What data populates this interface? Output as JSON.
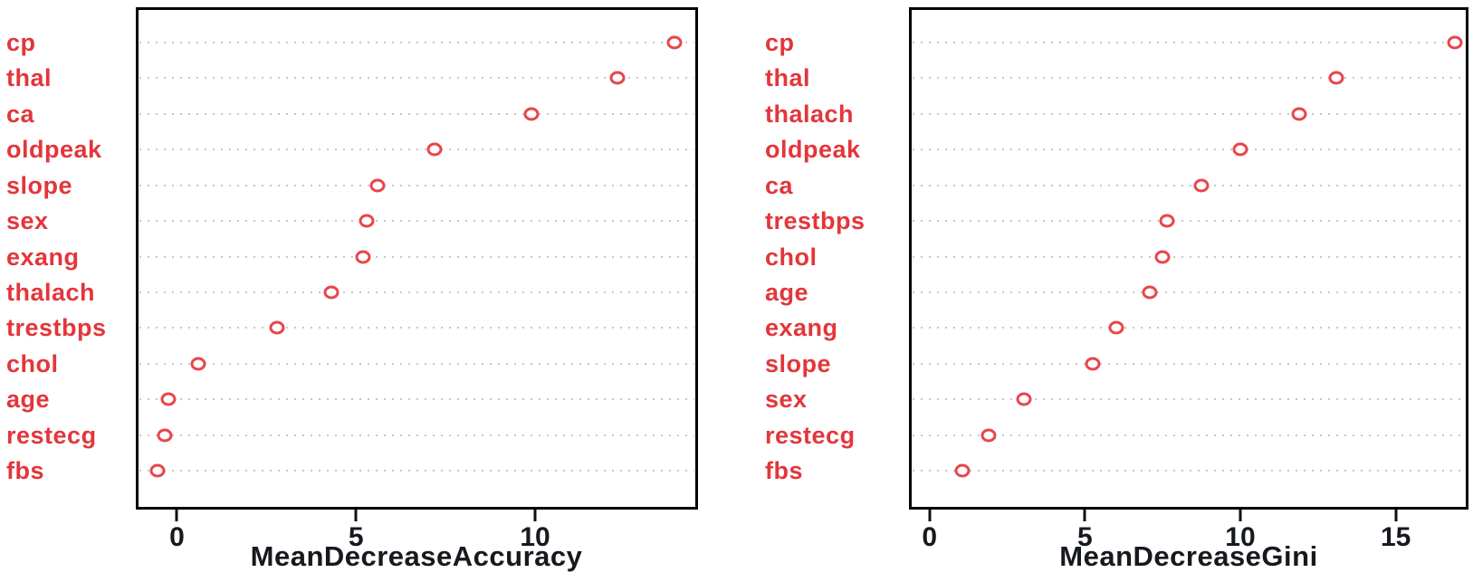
{
  "figure": {
    "description": "Random forest variable importance dot charts",
    "background": "#ffffff"
  },
  "colors": {
    "label_red": "#e2363b",
    "point_red": "#e8464b",
    "grid_gray": "#c7c7c7",
    "axis_text": "#16191e",
    "box_border": "#000000"
  },
  "chart_data": [
    {
      "type": "scatter",
      "subtype": "dotchart",
      "title": "",
      "xlabel": "MeanDecreaseAccuracy",
      "ylabel": "",
      "grid": true,
      "legend_position": "none",
      "categories": [
        "cp",
        "thal",
        "ca",
        "oldpeak",
        "slope",
        "sex",
        "exang",
        "thalach",
        "trestbps",
        "chol",
        "age",
        "restecg",
        "fbs"
      ],
      "values": [
        13.9,
        12.3,
        9.9,
        7.2,
        5.6,
        5.3,
        5.2,
        4.3,
        2.8,
        0.6,
        -0.25,
        -0.35,
        -0.55
      ],
      "xticks": [
        0,
        5,
        10
      ],
      "xlim": [
        -1.15,
        14.55
      ]
    },
    {
      "type": "scatter",
      "subtype": "dotchart",
      "title": "",
      "xlabel": "MeanDecreaseGini",
      "ylabel": "",
      "grid": true,
      "legend_position": "none",
      "categories": [
        "cp",
        "thal",
        "thalach",
        "oldpeak",
        "ca",
        "trestbps",
        "chol",
        "age",
        "exang",
        "slope",
        "sex",
        "restecg",
        "fbs"
      ],
      "values": [
        16.9,
        13.1,
        11.9,
        10.0,
        8.75,
        7.65,
        7.5,
        7.1,
        6.0,
        5.25,
        3.05,
        1.9,
        1.05
      ],
      "xticks": [
        0,
        5,
        10,
        15
      ],
      "xlim": [
        -0.66,
        17.34
      ]
    }
  ]
}
